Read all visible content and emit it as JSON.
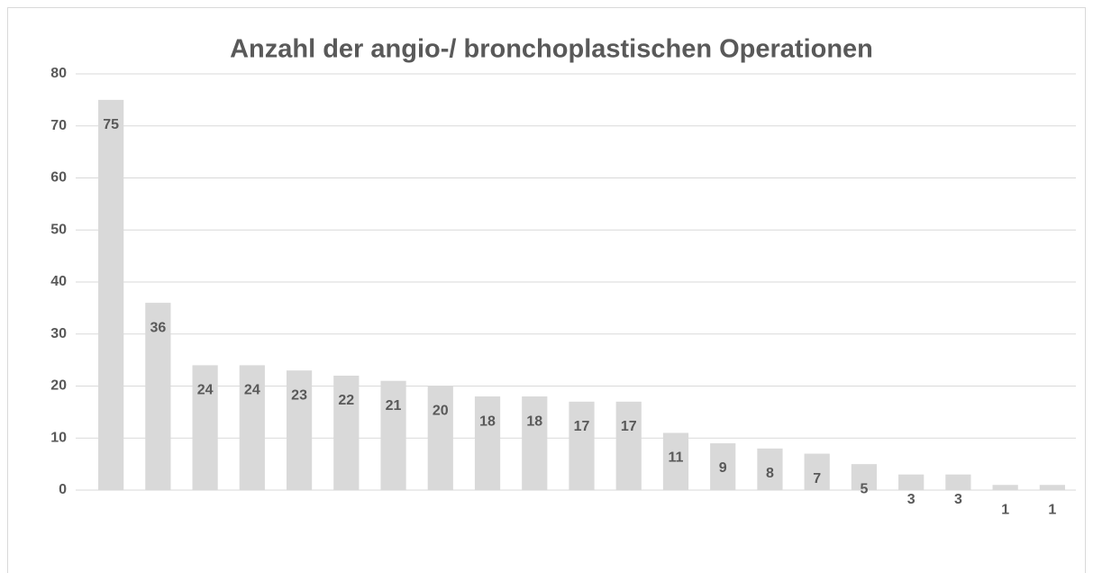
{
  "chart_data": {
    "type": "bar",
    "title": "Anzahl der angio-/ bronchoplastischen Operationen",
    "categories": [
      null,
      null,
      null,
      null,
      null,
      null,
      null,
      null,
      null,
      null,
      null,
      null,
      null,
      null,
      null,
      null,
      null,
      null,
      null,
      null,
      null
    ],
    "values": [
      75,
      36,
      24,
      24,
      23,
      22,
      21,
      20,
      18,
      18,
      17,
      17,
      11,
      9,
      8,
      7,
      5,
      3,
      3,
      1,
      1
    ],
    "color": "#d9d9d9",
    "ylim": [
      0,
      80
    ],
    "yticks": [
      0,
      10,
      20,
      30,
      40,
      50,
      60,
      70,
      80
    ],
    "grid": true
  }
}
